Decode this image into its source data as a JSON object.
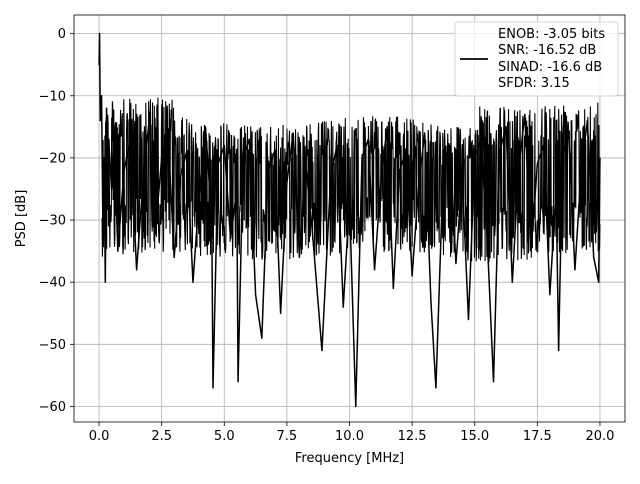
{
  "chart_data": {
    "type": "line",
    "title": "",
    "xlabel": "Frequency [MHz]",
    "ylabel": "PSD [dB]",
    "xlim": [
      -1.0,
      21.0
    ],
    "ylim": [
      -62.5,
      3.0
    ],
    "x_ticks": [
      0.0,
      2.5,
      5.0,
      7.5,
      10.0,
      12.5,
      15.0,
      17.5,
      20.0
    ],
    "x_tick_labels": [
      "0.0",
      "2.5",
      "5.0",
      "7.5",
      "10.0",
      "12.5",
      "15.0",
      "17.5",
      "20.0"
    ],
    "y_ticks": [
      0,
      -10,
      -20,
      -30,
      -40,
      -50,
      -60
    ],
    "y_tick_labels": [
      "0",
      "−10",
      "−20",
      "−30",
      "−40",
      "−50",
      "−60"
    ],
    "grid": true,
    "legend_position": "top-right",
    "legend_lines": [
      "ENOB: -3.05 bits",
      "SNR: -16.52 dB",
      "SINAD: -16.6 dB",
      "SFDR: 3.15"
    ],
    "line_color": "#000000",
    "series": [
      {
        "x": [
          0.0,
          0.02,
          0.05,
          0.1,
          0.15,
          0.2,
          0.25,
          0.3,
          0.35,
          0.4,
          0.5,
          0.6,
          0.75,
          1.0,
          1.25,
          1.5,
          1.75,
          2.0,
          2.25,
          2.5,
          2.75,
          3.0,
          3.25,
          3.5,
          3.75,
          4.0,
          4.25,
          4.5,
          4.55,
          4.75,
          5.0,
          5.25,
          5.5,
          5.55,
          5.75,
          6.0,
          6.25,
          6.5,
          6.75,
          7.0,
          7.25,
          7.5,
          7.75,
          8.0,
          8.25,
          8.5,
          8.9,
          9.25,
          9.5,
          9.75,
          10.0,
          10.25,
          10.5,
          10.75,
          11.0,
          11.25,
          11.5,
          11.75,
          12.0,
          12.25,
          12.5,
          12.75,
          13.0,
          13.25,
          13.45,
          13.75,
          14.0,
          14.25,
          14.5,
          14.75,
          15.0,
          15.25,
          15.5,
          15.75,
          16.0,
          16.25,
          16.5,
          16.75,
          17.0,
          17.25,
          17.5,
          17.75,
          18.0,
          18.25,
          18.35,
          18.5,
          18.75,
          19.0,
          19.25,
          19.5,
          19.75,
          19.95,
          20.0
        ],
        "y": [
          -5,
          0,
          -14,
          -10,
          -30,
          -20,
          -40,
          -12,
          -28,
          -18,
          -25,
          -15,
          -35,
          -22,
          -17,
          -38,
          -24,
          -14,
          -32,
          -20,
          -16,
          -36,
          -23,
          -19,
          -40,
          -26,
          -15,
          -30,
          -57,
          -21,
          -18,
          -33,
          -25,
          -56,
          -20,
          -17,
          -42,
          -49,
          -22,
          -19,
          -45,
          -24,
          -16,
          -36,
          -21,
          -31,
          -51,
          -23,
          -18,
          -44,
          -27,
          -60,
          -20,
          -17,
          -38,
          -24,
          -15,
          -41,
          -22,
          -19,
          -39,
          -25,
          -16,
          -43,
          -57,
          -21,
          -18,
          -37,
          -23,
          -46,
          -20,
          -17,
          -33,
          -56,
          -19,
          -15,
          -40,
          -22,
          -13,
          -35,
          -21,
          -18,
          -42,
          -25,
          -51,
          -20,
          -16,
          -38,
          -22,
          -14,
          -36,
          -40,
          -20
        ]
      }
    ]
  }
}
